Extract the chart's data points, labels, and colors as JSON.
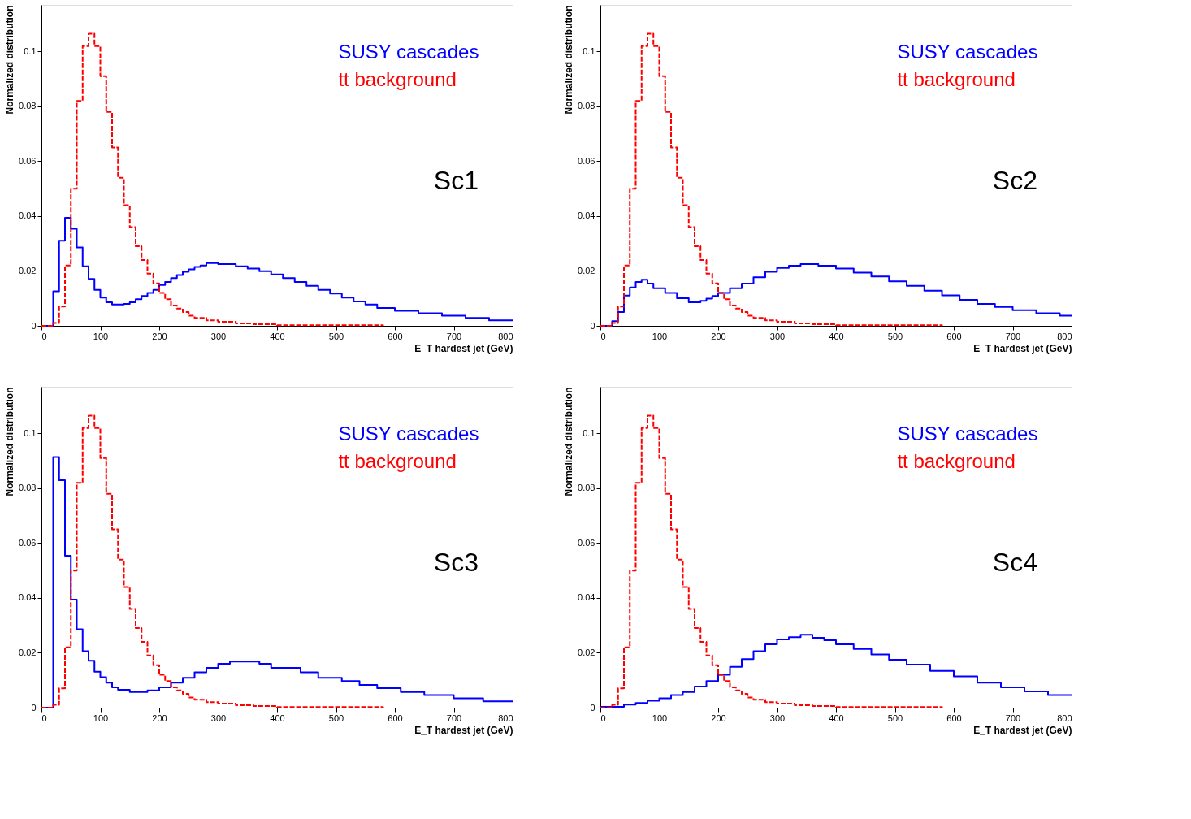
{
  "chart_data": [
    {
      "type": "step",
      "annotations": [
        "Sc1"
      ],
      "xlabel": "E_T hardest jet (GeV)",
      "ylabel": "Normalized distribution",
      "xlim": [
        0,
        800
      ],
      "ylim": [
        0,
        0.117
      ],
      "xticks": [
        0,
        100,
        200,
        300,
        400,
        500,
        600,
        700,
        800
      ],
      "yticks": [
        0,
        0.02,
        0.04,
        0.06,
        0.08,
        0.1
      ],
      "legend": "top right",
      "grid": false,
      "series": [
        {
          "name": "SUSY cascades",
          "color": "#0000ff",
          "line_style": "solid",
          "x": [
            0,
            20,
            30,
            40,
            50,
            60,
            70,
            80,
            90,
            100,
            110,
            120,
            140,
            150,
            160,
            170,
            180,
            190,
            200,
            210,
            220,
            230,
            240,
            250,
            260,
            270,
            280,
            300,
            330,
            350,
            370,
            390,
            410,
            430,
            450,
            470,
            490,
            510,
            530,
            550,
            570,
            600,
            640,
            680,
            720,
            760,
            800
          ],
          "values": [
            0,
            0.0126,
            0.031,
            0.0394,
            0.0354,
            0.0286,
            0.0217,
            0.0171,
            0.0131,
            0.0103,
            0.0086,
            0.0078,
            0.008,
            0.0086,
            0.0097,
            0.0109,
            0.012,
            0.0131,
            0.0149,
            0.016,
            0.0174,
            0.0185,
            0.0197,
            0.0206,
            0.0215,
            0.022,
            0.0229,
            0.0225,
            0.0217,
            0.0209,
            0.0199,
            0.0187,
            0.0174,
            0.016,
            0.0146,
            0.0131,
            0.0118,
            0.0103,
            0.0089,
            0.0078,
            0.0065,
            0.0055,
            0.0046,
            0.0037,
            0.0029,
            0.002,
            0.002
          ]
        },
        {
          "name": "tt background",
          "color": "#ff0000",
          "line_style": "dashed",
          "x": [
            0,
            20,
            30,
            40,
            50,
            60,
            70,
            80,
            90,
            100,
            110,
            120,
            130,
            140,
            150,
            160,
            170,
            180,
            190,
            200,
            210,
            220,
            230,
            240,
            250,
            260,
            280,
            300,
            330,
            360,
            400,
            580
          ],
          "values": [
            0,
            0.001,
            0.007,
            0.022,
            0.05,
            0.082,
            0.102,
            0.1065,
            0.102,
            0.091,
            0.078,
            0.065,
            0.054,
            0.044,
            0.036,
            0.029,
            0.024,
            0.019,
            0.0155,
            0.012,
            0.0097,
            0.0074,
            0.0063,
            0.005,
            0.0037,
            0.0029,
            0.002,
            0.0015,
            0.0009,
            0.0006,
            0.0002,
            0
          ]
        }
      ]
    },
    {
      "type": "step",
      "annotations": [
        "Sc2"
      ],
      "xlabel": "E_T hardest jet (GeV)",
      "ylabel": "Normalized distribution",
      "xlim": [
        0,
        800
      ],
      "ylim": [
        0,
        0.117
      ],
      "xticks": [
        0,
        100,
        200,
        300,
        400,
        500,
        600,
        700,
        800
      ],
      "yticks": [
        0,
        0.02,
        0.04,
        0.06,
        0.08,
        0.1
      ],
      "legend": "top right",
      "grid": false,
      "series": [
        {
          "name": "SUSY cascades",
          "color": "#0000ff",
          "line_style": "solid",
          "x": [
            0,
            20,
            30,
            40,
            50,
            60,
            70,
            80,
            90,
            110,
            130,
            150,
            170,
            180,
            190,
            200,
            220,
            240,
            260,
            280,
            300,
            320,
            340,
            370,
            400,
            430,
            460,
            490,
            520,
            550,
            580,
            610,
            640,
            670,
            700,
            740,
            780,
            800
          ],
          "values": [
            0,
            0.0017,
            0.005,
            0.011,
            0.014,
            0.016,
            0.0168,
            0.0154,
            0.0137,
            0.012,
            0.0101,
            0.0086,
            0.0091,
            0.0099,
            0.0109,
            0.012,
            0.0137,
            0.0154,
            0.0177,
            0.0197,
            0.0211,
            0.0219,
            0.0225,
            0.0219,
            0.0209,
            0.0194,
            0.018,
            0.0162,
            0.0146,
            0.0128,
            0.0111,
            0.0095,
            0.008,
            0.0069,
            0.0057,
            0.0046,
            0.0037,
            0.0037
          ]
        },
        {
          "name": "tt background",
          "color": "#ff0000",
          "line_style": "dashed",
          "x": [
            0,
            20,
            30,
            40,
            50,
            60,
            70,
            80,
            90,
            100,
            110,
            120,
            130,
            140,
            150,
            160,
            170,
            180,
            190,
            200,
            210,
            220,
            230,
            240,
            250,
            260,
            280,
            300,
            330,
            360,
            400,
            580
          ],
          "values": [
            0,
            0.001,
            0.007,
            0.022,
            0.05,
            0.082,
            0.102,
            0.1065,
            0.102,
            0.091,
            0.078,
            0.065,
            0.054,
            0.044,
            0.036,
            0.029,
            0.024,
            0.019,
            0.0155,
            0.012,
            0.0097,
            0.0074,
            0.0063,
            0.005,
            0.0037,
            0.0029,
            0.002,
            0.0015,
            0.0009,
            0.0006,
            0.0002,
            0
          ]
        }
      ]
    },
    {
      "type": "step",
      "annotations": [
        "Sc3"
      ],
      "xlabel": "E_T hardest jet (GeV)",
      "ylabel": "Normalized distribution",
      "xlim": [
        0,
        800
      ],
      "ylim": [
        0,
        0.117
      ],
      "xticks": [
        0,
        100,
        200,
        300,
        400,
        500,
        600,
        700,
        800
      ],
      "yticks": [
        0,
        0.02,
        0.04,
        0.06,
        0.08,
        0.1
      ],
      "legend": "top right",
      "grid": false,
      "series": [
        {
          "name": "SUSY cascades",
          "color": "#0000ff",
          "line_style": "solid",
          "x": [
            0,
            20,
            30,
            40,
            50,
            60,
            70,
            80,
            90,
            100,
            110,
            120,
            130,
            150,
            180,
            200,
            220,
            240,
            260,
            280,
            300,
            320,
            370,
            390,
            440,
            470,
            510,
            540,
            570,
            610,
            650,
            700,
            750,
            800
          ],
          "values": [
            0,
            0.0914,
            0.0829,
            0.0554,
            0.0394,
            0.0286,
            0.0206,
            0.0171,
            0.0131,
            0.0111,
            0.0091,
            0.0074,
            0.0065,
            0.0057,
            0.0063,
            0.0074,
            0.0091,
            0.0109,
            0.0129,
            0.0145,
            0.016,
            0.0168,
            0.016,
            0.0145,
            0.0129,
            0.0109,
            0.0097,
            0.0083,
            0.0071,
            0.0057,
            0.0046,
            0.0034,
            0.0023,
            0.0023
          ]
        },
        {
          "name": "tt background",
          "color": "#ff0000",
          "line_style": "dashed",
          "x": [
            0,
            20,
            30,
            40,
            50,
            60,
            70,
            80,
            90,
            100,
            110,
            120,
            130,
            140,
            150,
            160,
            170,
            180,
            190,
            200,
            210,
            220,
            230,
            240,
            250,
            260,
            280,
            300,
            330,
            360,
            400,
            580
          ],
          "values": [
            0,
            0.001,
            0.007,
            0.022,
            0.05,
            0.082,
            0.102,
            0.1065,
            0.102,
            0.091,
            0.078,
            0.065,
            0.054,
            0.044,
            0.036,
            0.029,
            0.024,
            0.019,
            0.0155,
            0.012,
            0.0097,
            0.0074,
            0.0063,
            0.005,
            0.0037,
            0.0029,
            0.002,
            0.0015,
            0.0009,
            0.0006,
            0.0002,
            0
          ]
        }
      ]
    },
    {
      "type": "step",
      "annotations": [
        "Sc4"
      ],
      "xlabel": "E_T hardest jet (GeV)",
      "ylabel": "Normalized distribution",
      "xlim": [
        0,
        800
      ],
      "ylim": [
        0,
        0.117
      ],
      "xticks": [
        0,
        100,
        200,
        300,
        400,
        500,
        600,
        700,
        800
      ],
      "yticks": [
        0,
        0.02,
        0.04,
        0.06,
        0.08,
        0.1
      ],
      "legend": "top right",
      "grid": false,
      "series": [
        {
          "name": "SUSY cascades",
          "color": "#0000ff",
          "line_style": "solid",
          "x": [
            0,
            40,
            60,
            80,
            100,
            120,
            140,
            160,
            180,
            200,
            220,
            240,
            260,
            280,
            300,
            320,
            340,
            360,
            380,
            400,
            430,
            460,
            490,
            520,
            560,
            600,
            640,
            680,
            720,
            760,
            800
          ],
          "values": [
            0.0003,
            0.0011,
            0.0017,
            0.0025,
            0.0034,
            0.0046,
            0.0057,
            0.0077,
            0.0097,
            0.012,
            0.0149,
            0.0177,
            0.0206,
            0.0231,
            0.0249,
            0.0257,
            0.0266,
            0.0255,
            0.0246,
            0.0231,
            0.0214,
            0.0194,
            0.0175,
            0.0157,
            0.0134,
            0.0114,
            0.0091,
            0.0074,
            0.0059,
            0.0046,
            0.0046
          ]
        },
        {
          "name": "tt background",
          "color": "#ff0000",
          "line_style": "dashed",
          "x": [
            0,
            20,
            30,
            40,
            50,
            60,
            70,
            80,
            90,
            100,
            110,
            120,
            130,
            140,
            150,
            160,
            170,
            180,
            190,
            200,
            210,
            220,
            230,
            240,
            250,
            260,
            280,
            300,
            330,
            360,
            400,
            580
          ],
          "values": [
            0,
            0.001,
            0.007,
            0.022,
            0.05,
            0.082,
            0.102,
            0.1065,
            0.102,
            0.091,
            0.078,
            0.065,
            0.054,
            0.044,
            0.036,
            0.029,
            0.024,
            0.019,
            0.0155,
            0.012,
            0.0097,
            0.0074,
            0.0063,
            0.005,
            0.0037,
            0.0029,
            0.002,
            0.0015,
            0.0009,
            0.0006,
            0.0002,
            0
          ]
        }
      ]
    }
  ]
}
